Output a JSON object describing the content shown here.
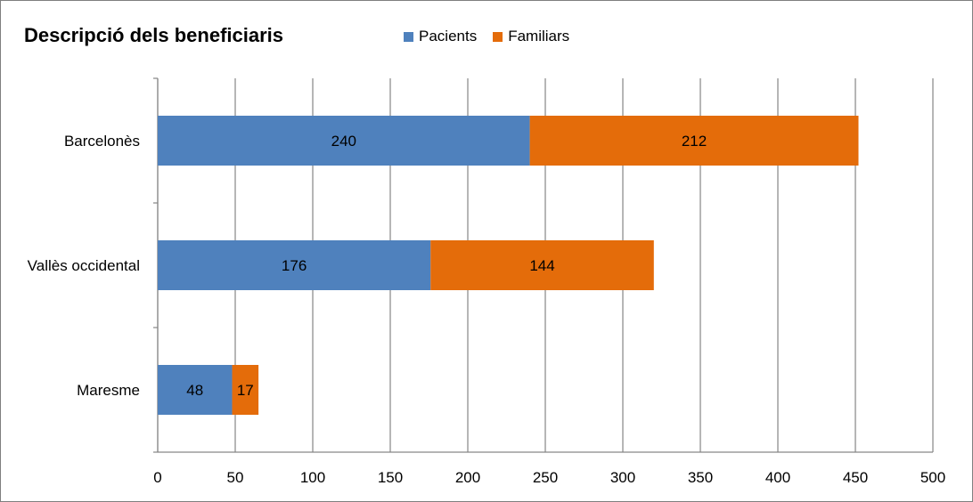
{
  "chart_data": {
    "type": "bar",
    "orientation": "horizontal",
    "stacked": true,
    "title": "Descripció dels beneficiaris",
    "categories": [
      "Barcelonès",
      "Vallès occidental",
      "Maresme"
    ],
    "series": [
      {
        "name": "Pacients",
        "values": [
          240,
          176,
          48
        ],
        "color": "#4f81bd"
      },
      {
        "name": "Familiars",
        "values": [
          212,
          144,
          17
        ],
        "color": "#e46c0a"
      }
    ],
    "xlim": [
      0,
      500
    ],
    "xticks": [
      0,
      50,
      100,
      150,
      200,
      250,
      300,
      350,
      400,
      450,
      500
    ],
    "grid": true,
    "legend_position": "top"
  }
}
